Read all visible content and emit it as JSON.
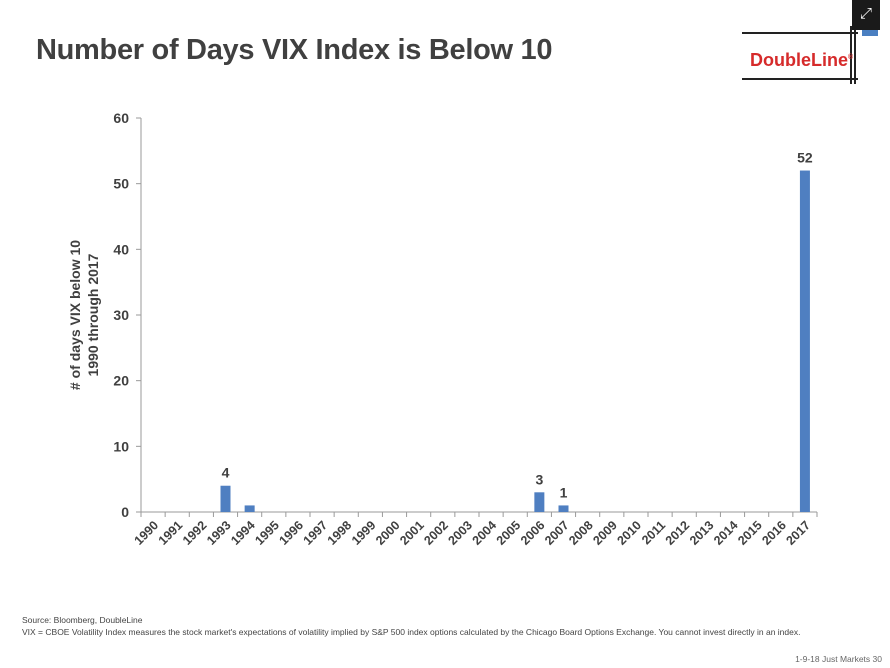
{
  "header": {
    "title": "Number of Days VIX Index is Below 10",
    "logo_text": "DoubleLine",
    "logo_mark": "®",
    "expand_icon": "expand-arrows-icon",
    "brand_color": "#d62b2b"
  },
  "chart_data": {
    "type": "bar",
    "title": "",
    "ylabel_line1": "# of days VIX below 10",
    "ylabel_line2": "1990 through 2017",
    "xlabel": "",
    "categories": [
      "1990",
      "1991",
      "1992",
      "1993",
      "1994",
      "1995",
      "1996",
      "1997",
      "1998",
      "1999",
      "2000",
      "2001",
      "2002",
      "2003",
      "2004",
      "2005",
      "2006",
      "2007",
      "2008",
      "2009",
      "2010",
      "2011",
      "2012",
      "2013",
      "2014",
      "2015",
      "2016",
      "2017"
    ],
    "values": [
      0,
      0,
      0,
      4,
      1,
      0,
      0,
      0,
      0,
      0,
      0,
      0,
      0,
      0,
      0,
      0,
      3,
      1,
      0,
      0,
      0,
      0,
      0,
      0,
      0,
      0,
      0,
      52
    ],
    "data_labels": {
      "1993": "4",
      "2006": "3",
      "2007": "1",
      "2017": "52"
    },
    "ylim": [
      0,
      60
    ],
    "yticks": [
      0,
      10,
      20,
      30,
      40,
      50,
      60
    ],
    "grid": false,
    "bar_color": "#4f7fc1"
  },
  "footer": {
    "source": "Source: Bloomberg, DoubleLine",
    "note": "VIX = CBOE Volatility Index measures the stock market's expectations of volatility implied by S&P 500 index options calculated by the Chicago Board Options Exchange. You cannot invest directly in an index.",
    "page_info": "1-9-18 Just Markets   30"
  }
}
